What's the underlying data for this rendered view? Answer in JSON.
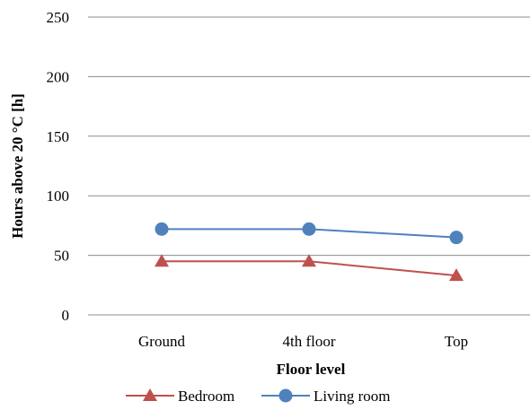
{
  "chart_data": {
    "type": "line",
    "categories": [
      "Ground",
      "4th floor",
      "Top"
    ],
    "series": [
      {
        "name": "Bedroom",
        "values": [
          45,
          45,
          33
        ],
        "color": "#c0504d",
        "marker": "triangle"
      },
      {
        "name": "Living room",
        "values": [
          72,
          72,
          65
        ],
        "color": "#4f81bd",
        "marker": "circle"
      }
    ],
    "xlabel": "Floor level",
    "ylabel": "Hours above 20 °C [h]",
    "ylim": [
      0,
      250
    ],
    "yticks": [
      "0",
      "50",
      "100",
      "150",
      "200",
      "250"
    ],
    "grid": true,
    "legend_position": "bottom"
  }
}
